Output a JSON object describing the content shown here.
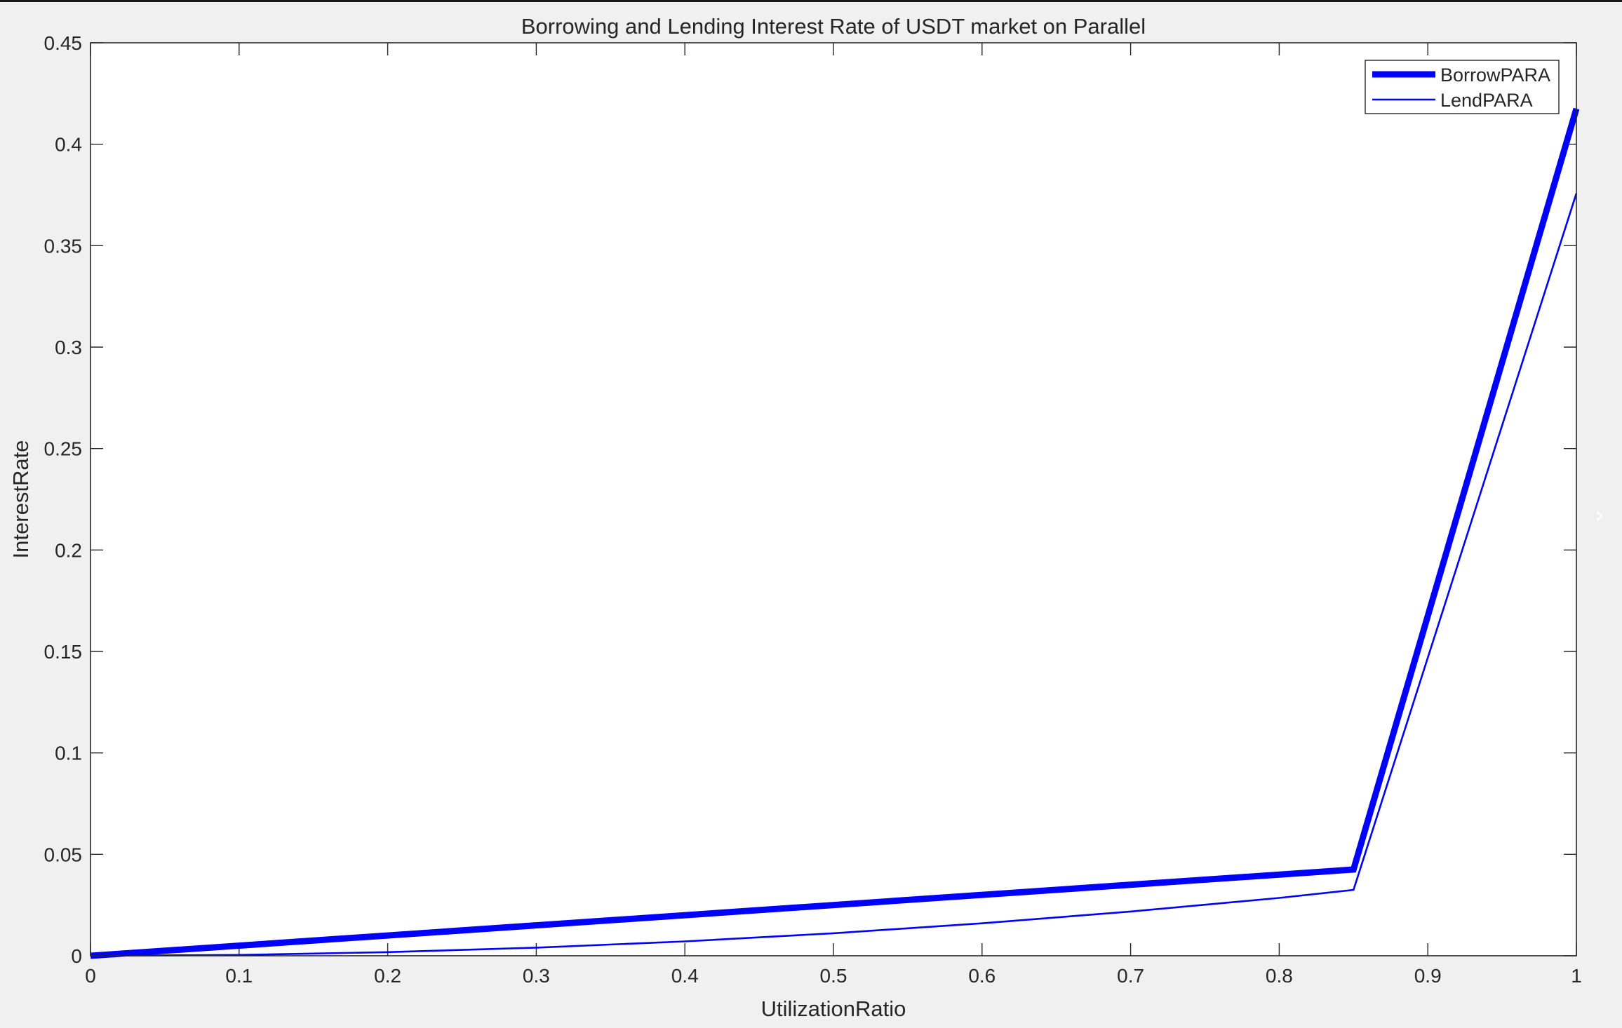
{
  "chart_data": {
    "type": "line",
    "title": "Borrowing and Lending Interest Rate of USDT market on Parallel",
    "xlabel": "UtilizationRatio",
    "ylabel": "InterestRate",
    "xlim": [
      0,
      1
    ],
    "ylim": [
      0,
      0.45
    ],
    "xticks": [
      0,
      0.1,
      0.2,
      0.3,
      0.4,
      0.5,
      0.6,
      0.7,
      0.8,
      0.9,
      1
    ],
    "xtick_labels": [
      "0",
      "0.1",
      "0.2",
      "0.3",
      "0.4",
      "0.5",
      "0.6",
      "0.7",
      "0.8",
      "0.9",
      "1"
    ],
    "yticks": [
      0,
      0.05,
      0.1,
      0.15,
      0.2,
      0.25,
      0.3,
      0.35,
      0.4,
      0.45
    ],
    "ytick_labels": [
      "0",
      "0.05",
      "0.1",
      "0.15",
      "0.2",
      "0.25",
      "0.3",
      "0.35",
      "0.4",
      "0.45"
    ],
    "grid": false,
    "legend_position": "top-right",
    "series": [
      {
        "name": "BorrowPARA",
        "color": "#0000ff",
        "line_style": "thick",
        "x": [
          0,
          0.85,
          1
        ],
        "y": [
          0,
          0.0425,
          0.4175
        ]
      },
      {
        "name": "LendPARA",
        "color": "#0000ff",
        "line_style": "thin",
        "x": [
          0,
          0.1,
          0.2,
          0.3,
          0.4,
          0.5,
          0.6,
          0.7,
          0.8,
          0.85,
          1
        ],
        "y": [
          0,
          0.0004,
          0.0018,
          0.004,
          0.0071,
          0.0111,
          0.016,
          0.0218,
          0.0285,
          0.0325,
          0.3758
        ]
      }
    ]
  },
  "ui": {
    "side_arrow_icon": "chevron-right-icon",
    "side_arrow_glyph": "›"
  }
}
